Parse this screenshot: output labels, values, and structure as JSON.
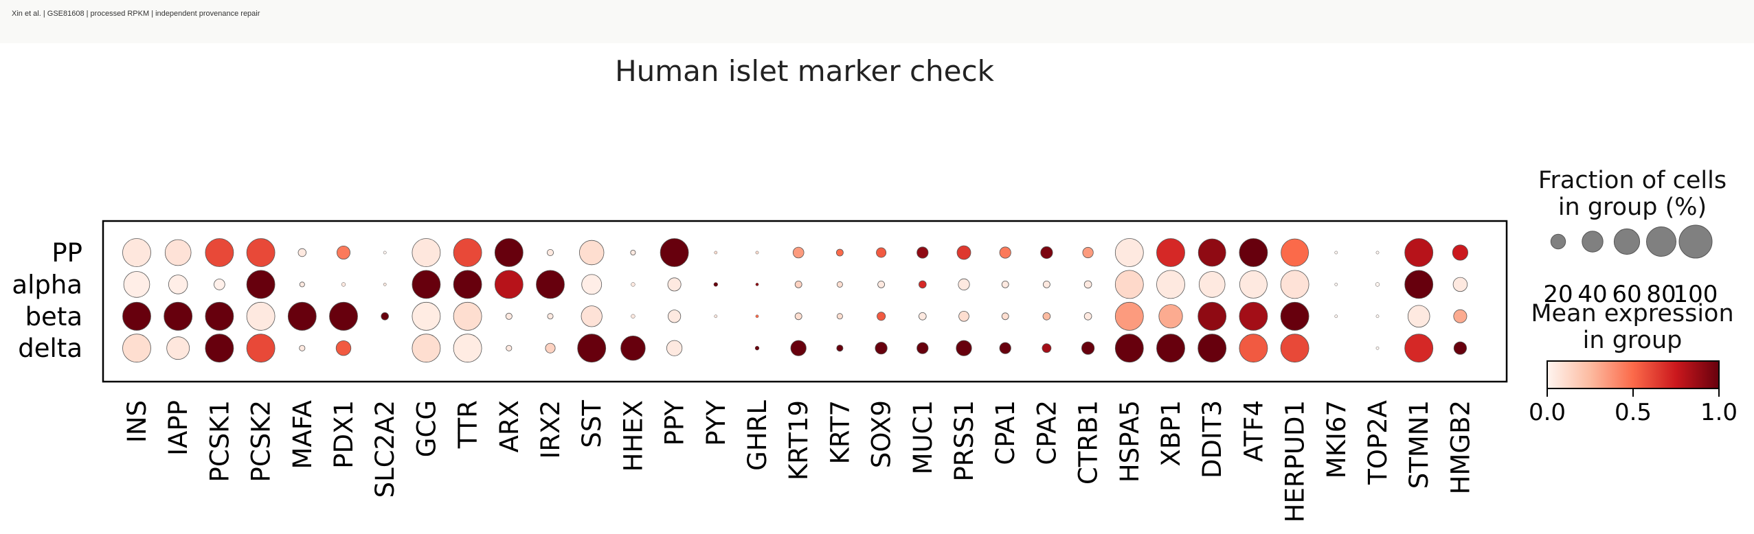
{
  "header": {
    "caption": "Xin et al. | GSE81608 | processed RPKM | independent provenance repair"
  },
  "chart_data": {
    "type": "dotplot",
    "title": "Human islet marker check",
    "groups": [
      "PP",
      "alpha",
      "beta",
      "delta"
    ],
    "genes": [
      "INS",
      "IAPP",
      "PCSK1",
      "PCSK2",
      "MAFA",
      "PDX1",
      "SLC2A2",
      "GCG",
      "TTR",
      "ARX",
      "IRX2",
      "SST",
      "HHEX",
      "PPY",
      "PYY",
      "GHRL",
      "KRT19",
      "KRT7",
      "SOX9",
      "MUC1",
      "PRSS1",
      "CPA1",
      "CPA2",
      "CTRB1",
      "HSPA5",
      "XBP1",
      "DDIT3",
      "ATF4",
      "HERPUD1",
      "MKI67",
      "TOP2A",
      "STMN1",
      "HMGB2"
    ],
    "fraction_pct": [
      [
        100,
        85,
        100,
        100,
        8,
        22,
        1,
        100,
        100,
        100,
        5,
        75,
        3,
        100,
        1,
        1,
        15,
        6,
        12,
        16,
        24,
        16,
        18,
        14,
        100,
        100,
        95,
        100,
        95,
        1,
        1,
        100,
        30
      ],
      [
        85,
        45,
        15,
        100,
        3,
        2,
        1,
        100,
        100,
        100,
        100,
        50,
        2,
        22,
        2,
        1,
        6,
        4,
        6,
        7,
        16,
        6,
        6,
        7,
        100,
        100,
        85,
        95,
        100,
        1,
        2,
        100,
        25
      ],
      [
        100,
        100,
        100,
        100,
        100,
        100,
        7,
        100,
        100,
        5,
        4,
        55,
        2,
        20,
        1,
        1,
        6,
        4,
        9,
        7,
        13,
        6,
        7,
        7,
        100,
        70,
        100,
        100,
        100,
        1,
        1,
        60,
        22
      ],
      [
        100,
        65,
        100,
        100,
        4,
        28,
        0,
        100,
        100,
        4,
        12,
        100,
        75,
        30,
        0,
        2,
        30,
        5,
        18,
        16,
        30,
        16,
        10,
        20,
        100,
        100,
        100,
        100,
        100,
        0,
        1,
        100,
        20
      ]
    ],
    "mean_expression": [
      [
        0.06,
        0.08,
        0.6,
        0.6,
        0.05,
        0.45,
        0.0,
        0.06,
        0.6,
        1.0,
        0.05,
        0.1,
        0.05,
        1.0,
        0.1,
        0.1,
        0.35,
        0.5,
        0.55,
        0.9,
        0.65,
        0.45,
        0.95,
        0.35,
        0.05,
        0.7,
        0.9,
        1.0,
        0.5,
        0.0,
        0.0,
        0.8,
        0.75
      ],
      [
        0.03,
        0.03,
        0.02,
        1.0,
        0.05,
        0.05,
        0.05,
        1.0,
        1.0,
        0.8,
        1.0,
        0.03,
        0.05,
        0.05,
        1.0,
        0.9,
        0.15,
        0.1,
        0.05,
        0.7,
        0.05,
        0.05,
        0.05,
        0.05,
        0.12,
        0.05,
        0.05,
        0.05,
        0.08,
        0.0,
        0.0,
        1.0,
        0.05
      ],
      [
        1.0,
        1.0,
        1.0,
        0.05,
        1.0,
        1.0,
        1.0,
        0.04,
        0.1,
        0.05,
        0.05,
        0.08,
        0.05,
        0.05,
        0.05,
        0.5,
        0.1,
        0.1,
        0.55,
        0.05,
        0.1,
        0.1,
        0.25,
        0.05,
        0.35,
        0.3,
        0.9,
        0.85,
        1.0,
        0.0,
        0.0,
        0.05,
        0.3
      ],
      [
        0.1,
        0.06,
        1.0,
        0.6,
        0.05,
        0.55,
        0.0,
        0.1,
        0.04,
        0.05,
        0.15,
        1.0,
        1.0,
        0.05,
        0.0,
        1.0,
        1.0,
        1.0,
        1.0,
        1.0,
        1.0,
        1.0,
        0.85,
        1.0,
        1.0,
        1.0,
        1.0,
        0.55,
        0.6,
        0.0,
        0.0,
        0.7,
        1.0
      ]
    ],
    "size_legend": {
      "title_line1": "Fraction of cells",
      "title_line2": "in group (%)",
      "values": [
        20,
        40,
        60,
        80,
        100
      ],
      "labels": [
        "20",
        "40",
        "60",
        "80",
        "100"
      ]
    },
    "color_legend": {
      "title_line1": "Mean expression",
      "title_line2": "in group",
      "colormap": "Reds",
      "ticks": [
        "0.0",
        "0.5",
        "1.0"
      ],
      "range": [
        0,
        1
      ]
    },
    "colors": {
      "cmap_stops": [
        "#fff5f0",
        "#fcbba1",
        "#fb6a4a",
        "#cb181d",
        "#67000d"
      ]
    }
  }
}
